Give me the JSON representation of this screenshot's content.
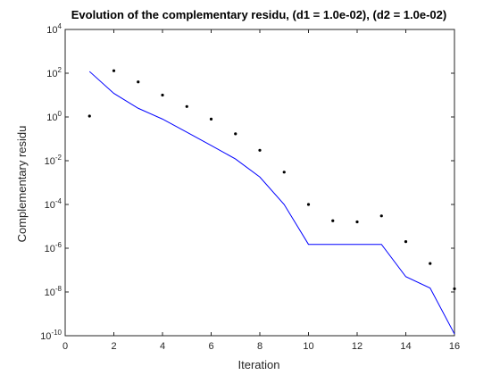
{
  "chart_data": {
    "type": "line",
    "title": "Evolution of the complementary residu, (d1 = 1.0e-02), (d2 = 1.0e-02)",
    "xlabel": "Iteration",
    "ylabel": "Complementary residu",
    "xlim": [
      0,
      16
    ],
    "ylim": [
      1e-10,
      10000
    ],
    "yscale": "log",
    "grid": false,
    "x_ticks": [
      0,
      2,
      4,
      6,
      8,
      10,
      12,
      14,
      16
    ],
    "y_tick_exponents": [
      -10,
      -8,
      -6,
      -4,
      -2,
      0,
      2,
      4
    ],
    "y_tick_base": "10",
    "series": [
      {
        "style": "line",
        "color": "#0000ff",
        "x": [
          1,
          2,
          3,
          4,
          5,
          6,
          7,
          8,
          9,
          10,
          11,
          12,
          13,
          14,
          15,
          16
        ],
        "values": [
          120,
          12,
          2.5,
          0.8,
          0.2,
          0.05,
          0.012,
          0.0018,
          0.0001,
          1.5e-06,
          1.5e-06,
          1.5e-06,
          1.5e-06,
          5e-08,
          1.5e-08,
          1.2e-10
        ]
      },
      {
        "style": "markers",
        "color": "#000000",
        "x": [
          1,
          2,
          3,
          4,
          5,
          6,
          7,
          8,
          9,
          10,
          11,
          12,
          13,
          14,
          15,
          16
        ],
        "values": [
          1.1,
          130,
          40,
          10,
          3,
          0.8,
          0.17,
          0.03,
          0.003,
          0.0001,
          1.8e-05,
          1.6e-05,
          3e-05,
          2e-06,
          2e-07,
          1.4e-08
        ]
      }
    ]
  }
}
